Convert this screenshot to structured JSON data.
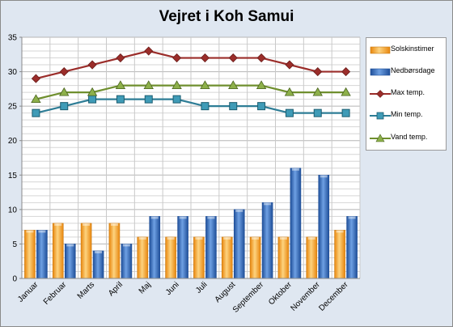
{
  "chart_data": {
    "type": "bar",
    "title": "Vejret i Koh Samui",
    "xlabel": "",
    "ylabel": "",
    "ylim": [
      0,
      35
    ],
    "yticks": [
      0,
      5,
      10,
      15,
      20,
      25,
      30,
      35
    ],
    "grid": true,
    "legend_position": "right",
    "categories": [
      "Januar",
      "Februar",
      "Marts",
      "April",
      "Maj",
      "Juni",
      "Juli",
      "August",
      "September",
      "Oktober",
      "November",
      "December"
    ],
    "series": [
      {
        "name": "Solskinstimer",
        "kind": "bar",
        "color": "#f5a623",
        "values": [
          7,
          8,
          8,
          8,
          6,
          6,
          6,
          6,
          6,
          6,
          6,
          7
        ]
      },
      {
        "name": "Nedbørsdage",
        "kind": "bar",
        "color": "#2f68b8",
        "values": [
          7,
          5,
          4,
          5,
          9,
          9,
          9,
          10,
          11,
          16,
          15,
          9
        ]
      },
      {
        "name": "Max temp.",
        "kind": "line",
        "marker": "diamond",
        "color": "#9b2d2a",
        "values": [
          29,
          30,
          31,
          32,
          33,
          32,
          32,
          32,
          32,
          31,
          30,
          30
        ]
      },
      {
        "name": "Min temp.",
        "kind": "line",
        "marker": "square",
        "color": "#2e7d96",
        "values": [
          24,
          25,
          26,
          26,
          26,
          26,
          25,
          25,
          25,
          24,
          24,
          24
        ]
      },
      {
        "name": "Vand temp.",
        "kind": "line",
        "marker": "triangle",
        "color": "#6f8f2e",
        "values": [
          26,
          27,
          27,
          28,
          28,
          28,
          28,
          28,
          28,
          27,
          27,
          27
        ]
      }
    ]
  }
}
